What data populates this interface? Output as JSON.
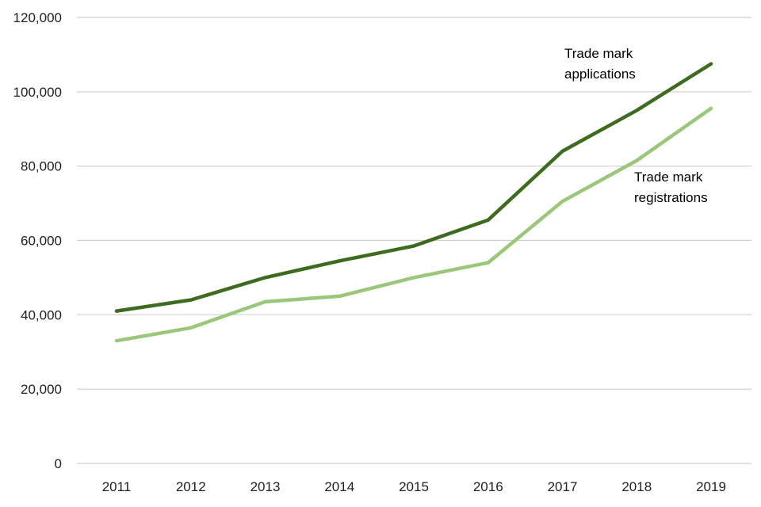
{
  "chart_data": {
    "type": "line",
    "x": [
      "2011",
      "2012",
      "2013",
      "2014",
      "2015",
      "2016",
      "2017",
      "2018",
      "2019"
    ],
    "series": [
      {
        "name_lines": [
          "Trade mark",
          "applications"
        ],
        "values": [
          41000,
          44000,
          50000,
          54500,
          58500,
          65500,
          84000,
          95000,
          107500
        ],
        "color": "#3d6b1f"
      },
      {
        "name_lines": [
          "Trade mark",
          "registrations"
        ],
        "values": [
          33000,
          36500,
          43500,
          45000,
          50000,
          54000,
          70500,
          81500,
          95500
        ],
        "color": "#9bc77a"
      }
    ],
    "ylim": [
      0,
      120000
    ],
    "y_ticks": [
      0,
      20000,
      40000,
      60000,
      80000,
      100000,
      120000
    ],
    "y_tick_labels": [
      "0",
      "20,000",
      "40,000",
      "60,000",
      "80,000",
      "100,000",
      "120,000"
    ],
    "grid": true,
    "grid_color": "#cfcfcf",
    "title": "",
    "xlabel": "",
    "ylabel": ""
  }
}
